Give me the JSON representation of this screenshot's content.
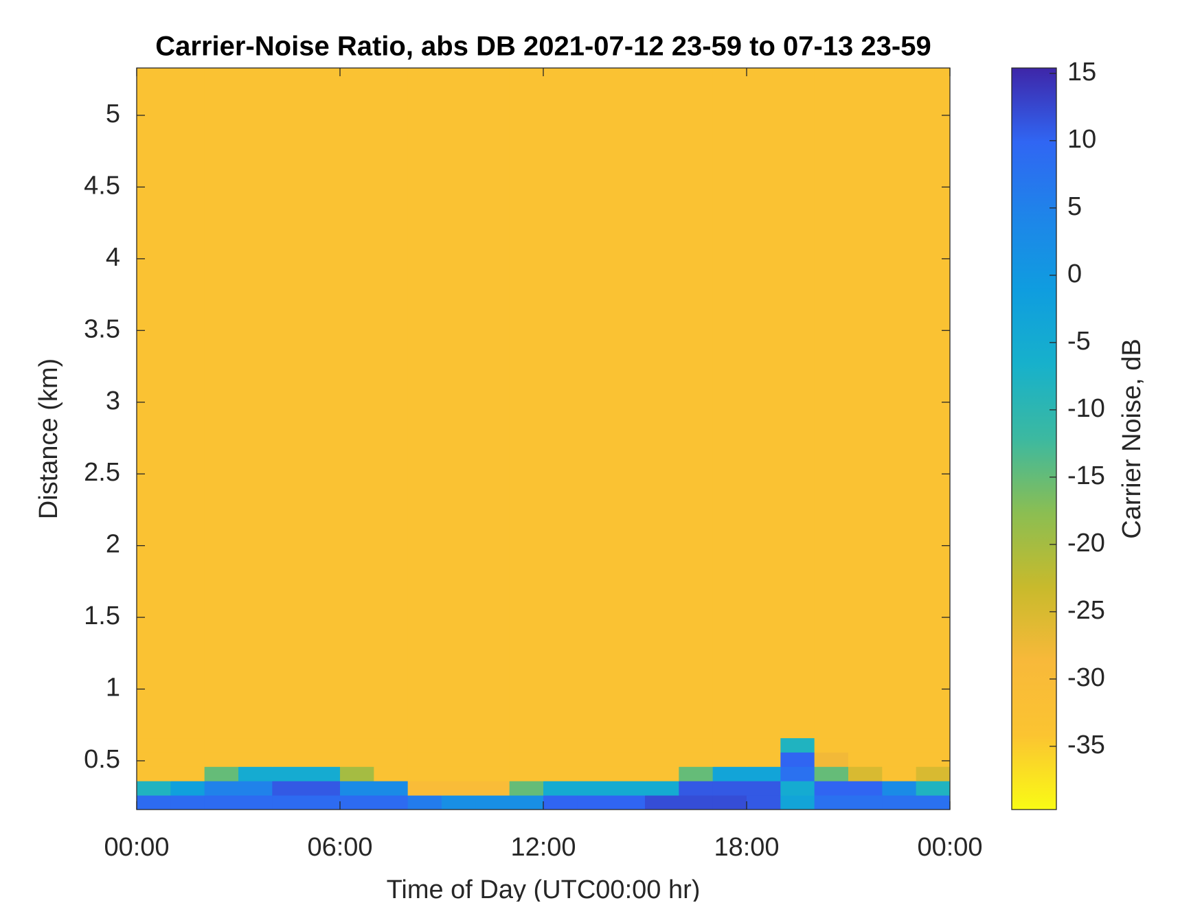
{
  "chart_data": {
    "type": "heatmap",
    "title": "Carrier-Noise Ratio, abs DB 2021-07-12 23-59 to 07-13 23-59",
    "x_label": "Time of Day (UTC00:00 hr)",
    "y_label": "Distance (km)",
    "colorbar_label": "Carrier Noise, dB",
    "x_edges": [
      0,
      1,
      2,
      3,
      4,
      5,
      6,
      7,
      8,
      9,
      10,
      11,
      12,
      13,
      14,
      15,
      16,
      17,
      18,
      19,
      20,
      21,
      22,
      23,
      24
    ],
    "y_edges": [
      0.16,
      0.26,
      0.36,
      0.46,
      0.56,
      0.66,
      5.33
    ],
    "z": [
      [
        9,
        9,
        9,
        9,
        9,
        9,
        9,
        9,
        6,
        2,
        2,
        2,
        10,
        10,
        10,
        12,
        12,
        12,
        11,
        -3,
        8,
        8,
        8,
        8
      ],
      [
        -8,
        -2,
        5,
        5,
        11,
        11,
        3,
        3,
        -30,
        -30,
        -30,
        -15,
        -5,
        -5,
        -5,
        -5,
        11,
        11,
        11,
        -5,
        10,
        10,
        3,
        -8
      ],
      [
        -33,
        -33,
        -15,
        -5,
        -5,
        -5,
        -20,
        -33,
        -33,
        -33,
        -33,
        -33,
        -33,
        -33,
        -33,
        -33,
        -15,
        -3,
        -3,
        8,
        -15,
        -25,
        -33,
        -25
      ],
      [
        -33,
        -33,
        -33,
        -33,
        -33,
        -33,
        -33,
        -33,
        -33,
        -33,
        -33,
        -33,
        -33,
        -33,
        -33,
        -33,
        -33,
        -33,
        -33,
        10,
        -28,
        -33,
        -33,
        -33
      ],
      [
        -33,
        -33,
        -33,
        -33,
        -33,
        -33,
        -33,
        -33,
        -33,
        -33,
        -33,
        -33,
        -33,
        -33,
        -33,
        -33,
        -33,
        -33,
        -33,
        -8,
        -33,
        -33,
        -33,
        -33
      ],
      [
        -33,
        -33,
        -33,
        -33,
        -33,
        -33,
        -33,
        -33,
        -33,
        -33,
        -33,
        -33,
        -33,
        -33,
        -33,
        -33,
        -33,
        -33,
        -33,
        -33,
        -33,
        -33,
        -33,
        -33
      ]
    ],
    "xlim": [
      0,
      24
    ],
    "xticks": [
      {
        "value": 0,
        "label": "00:00"
      },
      {
        "value": 6,
        "label": "06:00"
      },
      {
        "value": 12,
        "label": "12:00"
      },
      {
        "value": 18,
        "label": "18:00"
      },
      {
        "value": 24,
        "label": "00:00"
      }
    ],
    "ylim": [
      0.16,
      5.33
    ],
    "yticks": [
      0.5,
      1,
      1.5,
      2,
      2.5,
      3,
      3.5,
      4,
      4.5,
      5
    ],
    "clim": [
      -39.7,
      15.4
    ],
    "cticks": [
      -35,
      -30,
      -25,
      -20,
      -15,
      -10,
      -5,
      0,
      5,
      10,
      15
    ],
    "colormap": [
      "#f9fb15",
      "#fbc431",
      "#f8b93a",
      "#c8ba2c",
      "#8bbe52",
      "#3cb9a0",
      "#17b1cb",
      "#0f9ddf",
      "#1e85e9",
      "#3066f3",
      "#3e26a8"
    ]
  }
}
